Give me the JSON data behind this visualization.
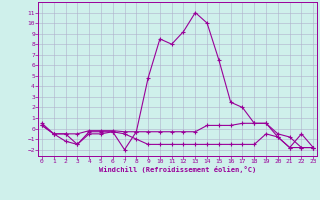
{
  "x": [
    0,
    1,
    2,
    3,
    4,
    5,
    6,
    7,
    8,
    9,
    10,
    11,
    12,
    13,
    14,
    15,
    16,
    17,
    18,
    19,
    20,
    21,
    22,
    23
  ],
  "line1": [
    0.5,
    -0.5,
    -0.5,
    -1.5,
    -0.3,
    -0.3,
    -0.3,
    -2.0,
    -0.3,
    4.8,
    8.5,
    8.0,
    9.2,
    11.0,
    10.0,
    6.5,
    2.5,
    2.0,
    0.5,
    0.5,
    -0.8,
    -1.8,
    -0.5,
    -1.8
  ],
  "line2": [
    0.3,
    -0.5,
    -0.5,
    -0.5,
    -0.2,
    -0.2,
    -0.2,
    -0.3,
    -0.3,
    -0.3,
    -0.3,
    -0.3,
    -0.3,
    -0.3,
    0.3,
    0.3,
    0.3,
    0.5,
    0.5,
    0.5,
    -0.5,
    -0.8,
    -1.8,
    -1.8
  ],
  "line3": [
    0.3,
    -0.5,
    -1.2,
    -1.5,
    -0.5,
    -0.5,
    -0.3,
    -0.5,
    -1.0,
    -1.5,
    -1.5,
    -1.5,
    -1.5,
    -1.5,
    -1.5,
    -1.5,
    -1.5,
    -1.5,
    -1.5,
    -0.5,
    -0.8,
    -1.8,
    -1.8,
    -1.8
  ],
  "bg_color": "#cff0eb",
  "line_color": "#990099",
  "grid_color": "#b0b0cc",
  "xlabel": "Windchill (Refroidissement éolien,°C)",
  "yticks": [
    -2,
    -1,
    0,
    1,
    2,
    3,
    4,
    5,
    6,
    7,
    8,
    9,
    10,
    11
  ],
  "xticks": [
    0,
    1,
    2,
    3,
    4,
    5,
    6,
    7,
    8,
    9,
    10,
    11,
    12,
    13,
    14,
    15,
    16,
    17,
    18,
    19,
    20,
    21,
    22,
    23
  ],
  "ylim": [
    -2.6,
    12.0
  ],
  "xlim": [
    -0.3,
    23.3
  ],
  "marker": "+",
  "markersize": 3,
  "linewidth": 0.8
}
